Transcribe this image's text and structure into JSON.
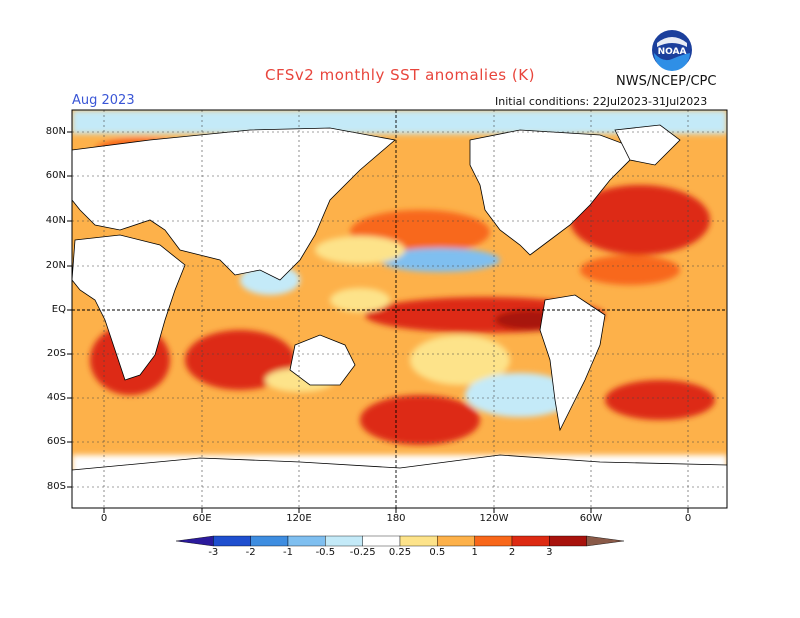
{
  "title": "CFSv2 monthly SST anomalies (K)",
  "agency": "NWS/NCEP/CPC",
  "logo_text": "NOAA",
  "forecast_period": "Aug 2023",
  "initial_conditions": "Initial conditions: 22Jul2023-31Jul2023",
  "lat_labels": [
    "80N",
    "60N",
    "40N",
    "20N",
    "EQ",
    "20S",
    "40S",
    "60S",
    "80S"
  ],
  "lon_labels": [
    "0",
    "60E",
    "120E",
    "180",
    "120W",
    "60W",
    "0"
  ],
  "colorbar": {
    "labels": [
      "-3",
      "-2",
      "-1",
      "-0.5",
      "-0.25",
      "0.25",
      "0.5",
      "1",
      "2",
      "3"
    ],
    "colors": [
      "#2b1a9c",
      "#1f4fcf",
      "#3e8de0",
      "#7fbff0",
      "#c4eaf8",
      "#ffffff",
      "#fde38a",
      "#fdb14a",
      "#f8671a",
      "#dd2a12",
      "#a8120c",
      "#8a5a48"
    ]
  },
  "palette": {
    "land": "#ffffff",
    "coast": "#000000",
    "neutral": "#ffffff"
  }
}
